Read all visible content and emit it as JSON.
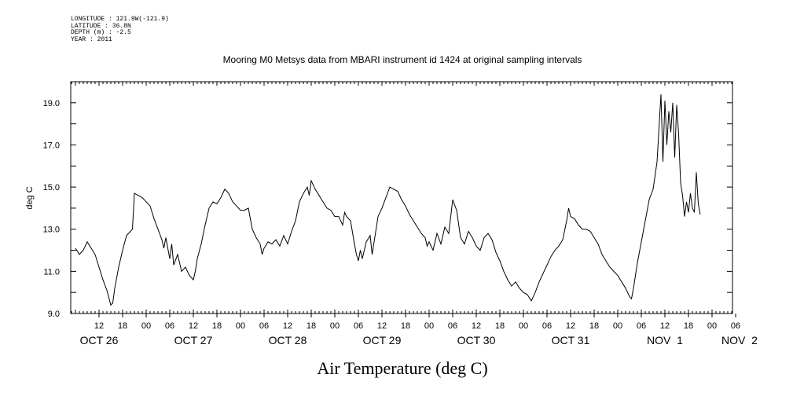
{
  "meta": {
    "longitude": "LONGITUDE : 121.9W(-121.9)",
    "latitude": "LATITUDE : 36.8N",
    "depth": "DEPTH (m) : -2.5",
    "year": "YEAR : 2011"
  },
  "chart_data": {
    "type": "line",
    "title": "Mooring M0 Metsys data from MBARI instrument id 1424 at original sampling intervals",
    "xlabel": "Air Temperature (deg C)",
    "ylabel": "deg C",
    "ylim": [
      9.0,
      20.0
    ],
    "yticks": [
      9.0,
      11.0,
      13.0,
      15.0,
      17.0,
      19.0
    ],
    "ytick_labels": [
      "9.0",
      "11.0",
      "13.0",
      "15.0",
      "17.0",
      "19.0"
    ],
    "x_unit": "hours since 2011-10-25 06:00",
    "xlim": [
      0,
      168
    ],
    "hour_ticks": [
      {
        "x": 6,
        "label": "12"
      },
      {
        "x": 12,
        "label": "18"
      },
      {
        "x": 18,
        "label": "00"
      },
      {
        "x": 24,
        "label": "06"
      },
      {
        "x": 30,
        "label": "12"
      },
      {
        "x": 36,
        "label": "18"
      },
      {
        "x": 42,
        "label": "00"
      },
      {
        "x": 48,
        "label": "06"
      },
      {
        "x": 54,
        "label": "12"
      },
      {
        "x": 60,
        "label": "18"
      },
      {
        "x": 66,
        "label": "00"
      },
      {
        "x": 72,
        "label": "06"
      },
      {
        "x": 78,
        "label": "12"
      },
      {
        "x": 84,
        "label": "18"
      },
      {
        "x": 90,
        "label": "00"
      },
      {
        "x": 96,
        "label": "06"
      },
      {
        "x": 102,
        "label": "12"
      },
      {
        "x": 108,
        "label": "18"
      },
      {
        "x": 114,
        "label": "00"
      },
      {
        "x": 120,
        "label": "06"
      },
      {
        "x": 126,
        "label": "12"
      },
      {
        "x": 132,
        "label": "18"
      },
      {
        "x": 138,
        "label": "00"
      },
      {
        "x": 144,
        "label": "06"
      },
      {
        "x": 150,
        "label": "12"
      },
      {
        "x": 156,
        "label": "18"
      },
      {
        "x": 162,
        "label": "00"
      },
      {
        "x": 168,
        "label": "06"
      }
    ],
    "date_labels": [
      {
        "x": 6,
        "label": "OCT 26"
      },
      {
        "x": 30,
        "label": "OCT 27"
      },
      {
        "x": 54,
        "label": "OCT 28"
      },
      {
        "x": 78,
        "label": "OCT 29"
      },
      {
        "x": 102,
        "label": "OCT 30"
      },
      {
        "x": 126,
        "label": "OCT 31"
      },
      {
        "x": 150,
        "label": "NOV  1"
      },
      {
        "x": 169,
        "label": "NOV  2"
      }
    ],
    "grid": false,
    "series": [
      {
        "values": [
          [
            0.0,
            12.1
          ],
          [
            1.0,
            11.8
          ],
          [
            2.0,
            12.0
          ],
          [
            3.0,
            12.4
          ],
          [
            4.0,
            12.1
          ],
          [
            5.0,
            11.8
          ],
          [
            6.0,
            11.2
          ],
          [
            7.0,
            10.6
          ],
          [
            8.0,
            10.1
          ],
          [
            9.0,
            9.4
          ],
          [
            9.5,
            9.5
          ],
          [
            10.0,
            10.2
          ],
          [
            11.0,
            11.2
          ],
          [
            12.0,
            12.0
          ],
          [
            13.0,
            12.7
          ],
          [
            14.0,
            12.9
          ],
          [
            14.5,
            13.0
          ],
          [
            15.0,
            14.7
          ],
          [
            16.0,
            14.6
          ],
          [
            17.0,
            14.5
          ],
          [
            18.0,
            14.3
          ],
          [
            19.0,
            14.1
          ],
          [
            20.0,
            13.5
          ],
          [
            21.0,
            13.0
          ],
          [
            22.0,
            12.5
          ],
          [
            22.5,
            12.1
          ],
          [
            23.0,
            12.6
          ],
          [
            24.0,
            11.6
          ],
          [
            24.5,
            12.3
          ],
          [
            25.0,
            11.3
          ],
          [
            26.0,
            11.8
          ],
          [
            27.0,
            11.0
          ],
          [
            28.0,
            11.2
          ],
          [
            29.0,
            10.8
          ],
          [
            30.0,
            10.6
          ],
          [
            30.5,
            11.0
          ],
          [
            31.0,
            11.6
          ],
          [
            32.0,
            12.3
          ],
          [
            33.0,
            13.2
          ],
          [
            34.0,
            14.0
          ],
          [
            35.0,
            14.3
          ],
          [
            36.0,
            14.2
          ],
          [
            37.0,
            14.5
          ],
          [
            38.0,
            14.9
          ],
          [
            39.0,
            14.7
          ],
          [
            40.0,
            14.3
          ],
          [
            41.0,
            14.1
          ],
          [
            42.0,
            13.9
          ],
          [
            43.0,
            13.9
          ],
          [
            44.0,
            14.0
          ],
          [
            45.0,
            13.0
          ],
          [
            46.0,
            12.6
          ],
          [
            47.0,
            12.3
          ],
          [
            47.5,
            11.8
          ],
          [
            48.0,
            12.1
          ],
          [
            49.0,
            12.4
          ],
          [
            50.0,
            12.3
          ],
          [
            51.0,
            12.5
          ],
          [
            52.0,
            12.2
          ],
          [
            53.0,
            12.7
          ],
          [
            54.0,
            12.3
          ],
          [
            55.0,
            12.9
          ],
          [
            56.0,
            13.4
          ],
          [
            57.0,
            14.3
          ],
          [
            58.0,
            14.7
          ],
          [
            59.0,
            15.0
          ],
          [
            59.5,
            14.6
          ],
          [
            60.0,
            15.3
          ],
          [
            61.0,
            14.9
          ],
          [
            62.0,
            14.6
          ],
          [
            63.0,
            14.3
          ],
          [
            64.0,
            14.0
          ],
          [
            65.0,
            13.9
          ],
          [
            66.0,
            13.6
          ],
          [
            67.0,
            13.6
          ],
          [
            68.0,
            13.2
          ],
          [
            68.5,
            13.8
          ],
          [
            69.0,
            13.6
          ],
          [
            70.0,
            13.4
          ],
          [
            71.0,
            12.3
          ],
          [
            71.5,
            11.8
          ],
          [
            72.0,
            11.5
          ],
          [
            72.5,
            12.0
          ],
          [
            73.0,
            11.6
          ],
          [
            74.0,
            12.4
          ],
          [
            75.0,
            12.7
          ],
          [
            75.5,
            11.8
          ],
          [
            76.0,
            12.4
          ],
          [
            77.0,
            13.6
          ],
          [
            78.0,
            14.0
          ],
          [
            79.0,
            14.5
          ],
          [
            80.0,
            15.0
          ],
          [
            81.0,
            14.9
          ],
          [
            82.0,
            14.8
          ],
          [
            83.0,
            14.4
          ],
          [
            84.0,
            14.1
          ],
          [
            85.0,
            13.7
          ],
          [
            86.0,
            13.4
          ],
          [
            87.0,
            13.1
          ],
          [
            88.0,
            12.8
          ],
          [
            89.0,
            12.6
          ],
          [
            89.5,
            12.2
          ],
          [
            90.0,
            12.4
          ],
          [
            91.0,
            12.0
          ],
          [
            92.0,
            12.8
          ],
          [
            93.0,
            12.3
          ],
          [
            94.0,
            13.1
          ],
          [
            95.0,
            12.8
          ],
          [
            96.0,
            14.4
          ],
          [
            97.0,
            13.9
          ],
          [
            98.0,
            12.6
          ],
          [
            99.0,
            12.3
          ],
          [
            100.0,
            12.9
          ],
          [
            101.0,
            12.6
          ],
          [
            102.0,
            12.2
          ],
          [
            103.0,
            12.0
          ],
          [
            104.0,
            12.6
          ],
          [
            105.0,
            12.8
          ],
          [
            106.0,
            12.5
          ],
          [
            107.0,
            11.9
          ],
          [
            108.0,
            11.5
          ],
          [
            109.0,
            11.0
          ],
          [
            110.0,
            10.6
          ],
          [
            111.0,
            10.3
          ],
          [
            112.0,
            10.5
          ],
          [
            113.0,
            10.2
          ],
          [
            114.0,
            10.0
          ],
          [
            115.0,
            9.9
          ],
          [
            116.0,
            9.6
          ],
          [
            117.0,
            10.0
          ],
          [
            118.0,
            10.5
          ],
          [
            119.0,
            10.9
          ],
          [
            120.0,
            11.3
          ],
          [
            121.0,
            11.7
          ],
          [
            122.0,
            12.0
          ],
          [
            123.0,
            12.2
          ],
          [
            124.0,
            12.5
          ],
          [
            125.0,
            13.4
          ],
          [
            125.5,
            14.0
          ],
          [
            126.0,
            13.6
          ],
          [
            127.0,
            13.5
          ],
          [
            128.0,
            13.2
          ],
          [
            129.0,
            13.0
          ],
          [
            130.0,
            13.0
          ],
          [
            131.0,
            12.9
          ],
          [
            132.0,
            12.6
          ],
          [
            133.0,
            12.3
          ],
          [
            134.0,
            11.8
          ],
          [
            135.0,
            11.5
          ],
          [
            136.0,
            11.2
          ],
          [
            137.0,
            11.0
          ],
          [
            138.0,
            10.8
          ],
          [
            139.0,
            10.5
          ],
          [
            140.0,
            10.2
          ],
          [
            141.0,
            9.8
          ],
          [
            141.5,
            9.7
          ],
          [
            142.0,
            10.2
          ],
          [
            143.0,
            11.4
          ],
          [
            144.0,
            12.4
          ],
          [
            145.0,
            13.4
          ],
          [
            146.0,
            14.4
          ],
          [
            147.0,
            14.9
          ],
          [
            148.0,
            16.2
          ],
          [
            148.5,
            17.8
          ],
          [
            149.0,
            19.4
          ],
          [
            149.5,
            16.2
          ],
          [
            150.0,
            19.1
          ],
          [
            150.5,
            17.0
          ],
          [
            151.0,
            18.6
          ],
          [
            151.5,
            17.6
          ],
          [
            152.0,
            19.0
          ],
          [
            152.5,
            16.4
          ],
          [
            153.0,
            18.9
          ],
          [
            153.5,
            17.5
          ],
          [
            154.0,
            15.2
          ],
          [
            154.5,
            14.6
          ],
          [
            155.0,
            13.6
          ],
          [
            155.5,
            14.3
          ],
          [
            156.0,
            13.8
          ],
          [
            156.5,
            14.7
          ],
          [
            157.0,
            14.0
          ],
          [
            157.5,
            13.8
          ],
          [
            158.0,
            15.7
          ],
          [
            158.5,
            14.2
          ],
          [
            159.0,
            13.7
          ]
        ]
      }
    ]
  }
}
